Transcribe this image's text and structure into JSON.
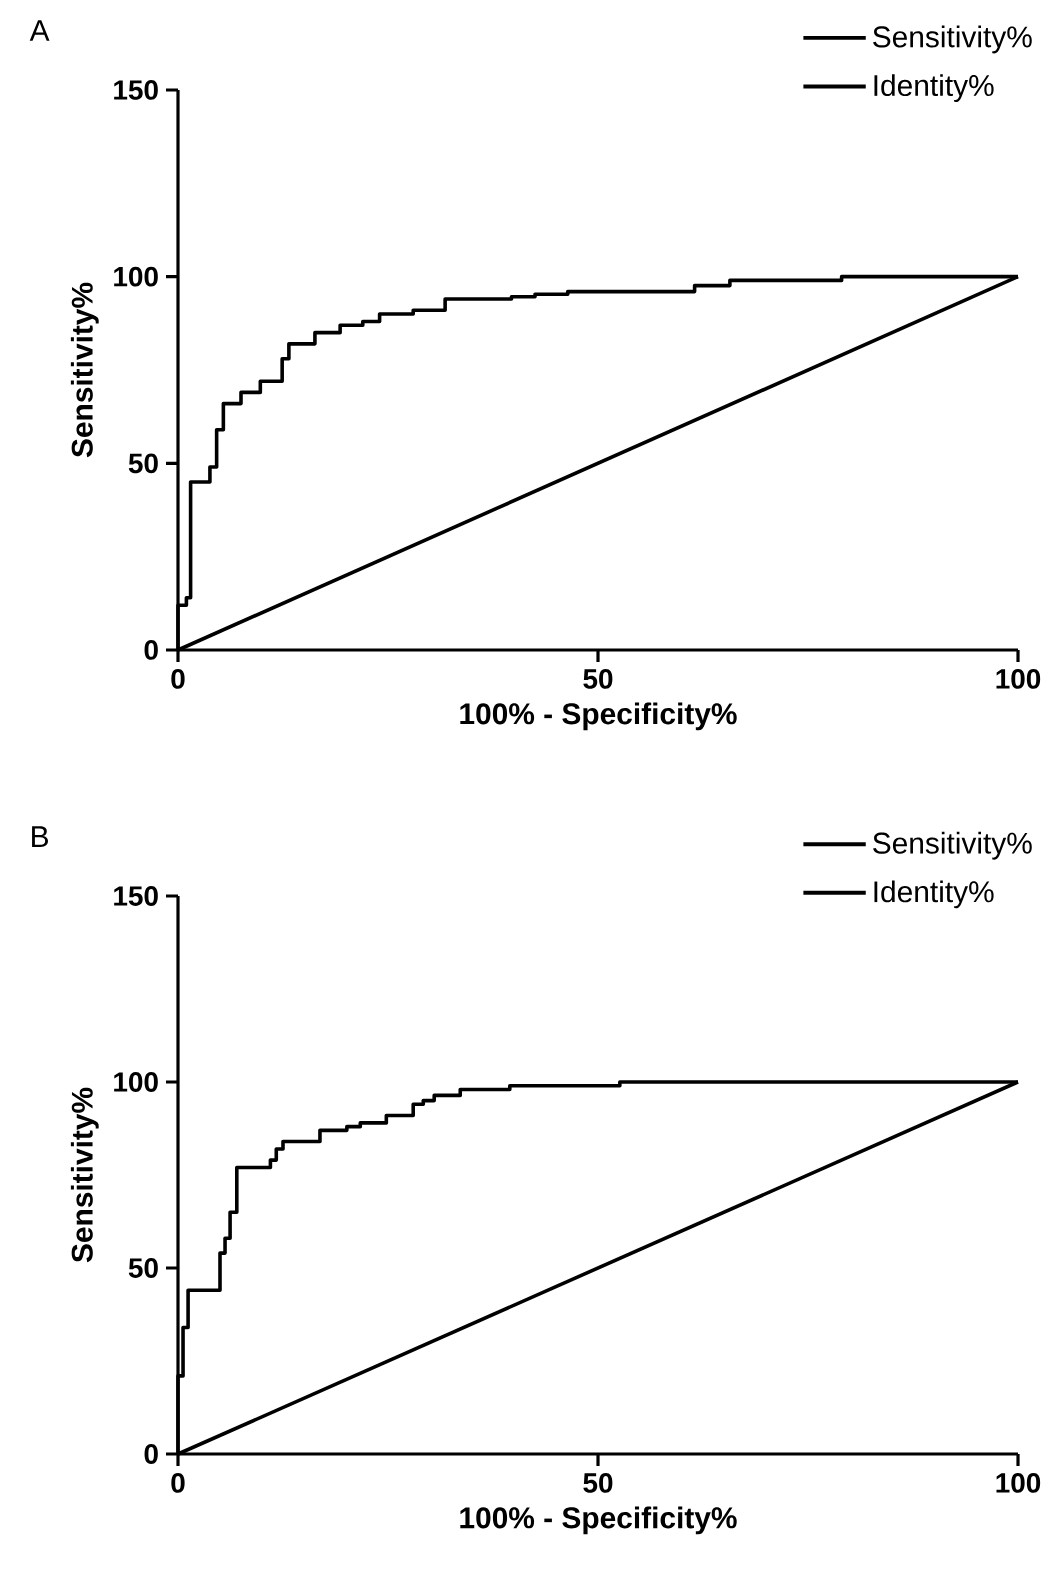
{
  "chart_data": [
    {
      "type": "line",
      "title": "A",
      "xlabel": "100% - Specificity%",
      "ylabel": "Sensitivity%",
      "xlim": [
        0,
        100
      ],
      "ylim": [
        0,
        150
      ],
      "xticks": [
        0,
        50,
        100
      ],
      "yticks": [
        0,
        50,
        100,
        150
      ],
      "legend": "top right",
      "grid": false,
      "series": [
        {
          "name": "Sensitivity%",
          "color": "#000000",
          "x": [
            0,
            0,
            1,
            1,
            1.5,
            1.5,
            3.8,
            3.8,
            4.6,
            4.6,
            5.4,
            5.4,
            7.5,
            7.5,
            9.8,
            9.8,
            12.4,
            12.4,
            13.2,
            13.2,
            16.3,
            16.3,
            19.3,
            19.3,
            22,
            22,
            24,
            24,
            28,
            28,
            31.8,
            31.8,
            39.7,
            39.7,
            42.5,
            42.5,
            46.4,
            46.4,
            61.5,
            61.5,
            65.7,
            65.7,
            79,
            79,
            100
          ],
          "values": [
            0,
            12,
            12,
            14,
            14,
            45,
            45,
            49,
            49,
            59,
            59,
            66,
            66,
            69,
            69,
            72,
            72,
            78,
            78,
            82,
            82,
            85,
            85,
            87,
            87,
            88,
            88,
            90,
            90,
            91,
            91,
            94,
            94,
            94.6,
            94.6,
            95.3,
            95.3,
            96,
            96,
            97.6,
            97.6,
            99,
            99,
            100,
            100
          ]
        },
        {
          "name": "Identity%",
          "color": "#000000",
          "x": [
            0,
            100
          ],
          "values": [
            0,
            100
          ]
        }
      ]
    },
    {
      "type": "line",
      "title": "B",
      "xlabel": "100% - Specificity%",
      "ylabel": "Sensitivity%",
      "xlim": [
        0,
        100
      ],
      "ylim": [
        0,
        150
      ],
      "xticks": [
        0,
        50,
        100
      ],
      "yticks": [
        0,
        50,
        100,
        150
      ],
      "legend": "top right",
      "grid": false,
      "series": [
        {
          "name": "Sensitivity%",
          "color": "#000000",
          "x": [
            0,
            0,
            0.6,
            0.6,
            1.2,
            1.2,
            5,
            5,
            5.6,
            5.6,
            6.2,
            6.2,
            7,
            7,
            11,
            11,
            11.7,
            11.7,
            12.5,
            12.5,
            16.9,
            16.9,
            20.1,
            20.1,
            21.7,
            21.7,
            24.8,
            24.8,
            28,
            28,
            29.2,
            29.2,
            30.5,
            30.5,
            33.6,
            33.6,
            39.5,
            39.5,
            52.6,
            52.6,
            100
          ],
          "values": [
            0,
            21,
            21,
            34,
            34,
            44,
            44,
            54,
            54,
            58,
            58,
            65,
            65,
            77,
            77,
            79,
            79,
            82,
            82,
            84,
            84,
            87,
            87,
            88,
            88,
            89,
            89,
            91,
            91,
            94,
            94,
            95,
            95,
            96.4,
            96.4,
            98,
            98,
            99,
            99,
            100,
            100
          ]
        },
        {
          "name": "Identity%",
          "color": "#000000",
          "x": [
            0,
            100
          ],
          "values": [
            0,
            100
          ]
        }
      ]
    }
  ]
}
